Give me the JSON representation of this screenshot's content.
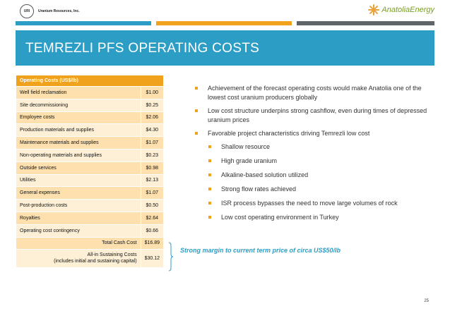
{
  "header": {
    "left_logo_mark": "URI",
    "left_company": "Uranium Resources, Inc.",
    "right_logo": "AnatoliaEnergy",
    "right_logo_icon": "starburst-logo-icon"
  },
  "colors": {
    "bar1": "#2c9ec6",
    "bar2": "#f0a21c",
    "bar3": "#5f6468",
    "banner": "#2c9ec6",
    "accent": "#f0a21c"
  },
  "title": "TEMREZLI PFS OPERATING COSTS",
  "table": {
    "header": "Operating Costs (US$/lb)",
    "rows": [
      {
        "label": "Well field reclamation",
        "value": "$1.00"
      },
      {
        "label": "Site decommissioning",
        "value": "$0.25"
      },
      {
        "label": "Employee costs",
        "value": "$2.06"
      },
      {
        "label": "Production materials and supplies",
        "value": "$4.30"
      },
      {
        "label": "Maintenance materials and supplies",
        "value": "$1.07"
      },
      {
        "label": "Non-operating materials and supplies",
        "value": "$0.23"
      },
      {
        "label": "Outside services",
        "value": "$0.98"
      },
      {
        "label": "Utilities",
        "value": "$2.13"
      },
      {
        "label": "General expenses",
        "value": "$1.07"
      },
      {
        "label": "Post-production costs",
        "value": "$0.50"
      },
      {
        "label": "Royalties",
        "value": "$2.64"
      },
      {
        "label": "Operating cost contingency",
        "value": "$0.66"
      }
    ],
    "total_label": "Total  Cash Cost",
    "total_value": "$16.89",
    "sustaining_label_1": "All-in Sustaining Costs",
    "sustaining_label_2": "(includes initial and sustaining capital)",
    "sustaining_value": "$30.12"
  },
  "margin_note": "Strong margin to current term price of circa US$50/lb",
  "bullets": [
    "Achievement of the forecast operating costs would make Anatolia one of the lowest cost uranium producers globally",
    "Low cost structure underpins strong cashflow, even during times of depressed uranium prices",
    "Favorable project characteristics driving Temrezli low cost"
  ],
  "sub_bullets": [
    "Shallow resource",
    "High grade uranium",
    "Alkaline-based solution utilized",
    "Strong flow rates achieved",
    "ISR process bypasses the need to move large volumes of rock",
    "Low cost operating environment in Turkey"
  ],
  "page_number": "25"
}
